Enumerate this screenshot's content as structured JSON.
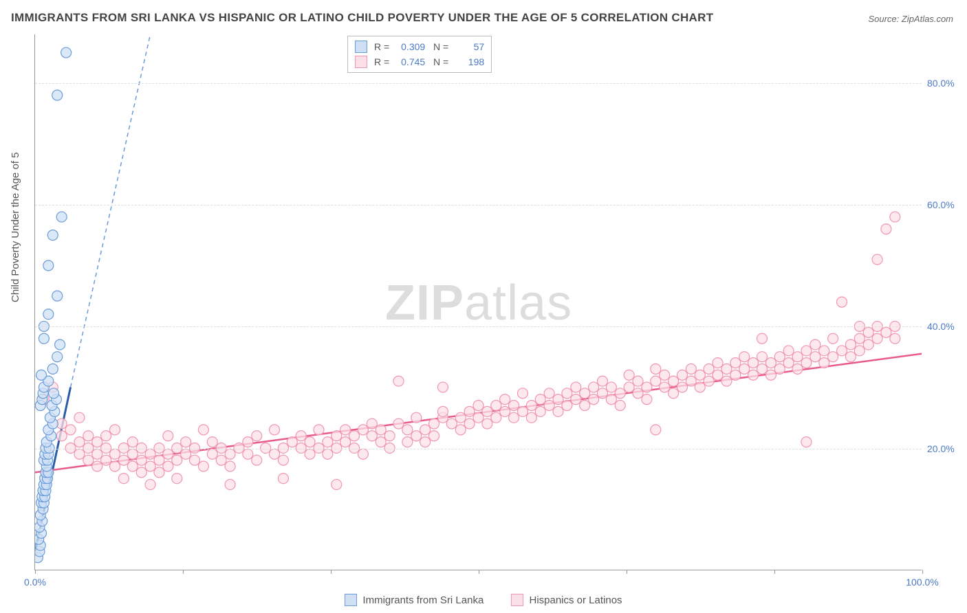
{
  "title": "IMMIGRANTS FROM SRI LANKA VS HISPANIC OR LATINO CHILD POVERTY UNDER THE AGE OF 5 CORRELATION CHART",
  "source": "Source: ZipAtlas.com",
  "ylabel": "Child Poverty Under the Age of 5",
  "watermark_a": "ZIP",
  "watermark_b": "atlas",
  "chart": {
    "type": "scatter",
    "xlim": [
      0,
      100
    ],
    "ylim": [
      0,
      88
    ],
    "yticks": [
      20,
      40,
      60,
      80
    ],
    "ytick_labels": [
      "20.0%",
      "40.0%",
      "60.0%",
      "80.0%"
    ],
    "xticks": [
      0,
      16.67,
      33.33,
      50,
      66.67,
      83.33,
      100
    ],
    "xtick_labels_shown": {
      "0": "0.0%",
      "100": "100.0%"
    },
    "background_color": "#ffffff",
    "grid_color": "#dddddd",
    "marker_radius": 7.5,
    "marker_stroke_width": 1.2,
    "series": {
      "blue": {
        "label": "Immigrants from Sri Lanka",
        "fill": "#cfe0f5",
        "stroke": "#6a9bd8",
        "R": "0.309",
        "N": "57",
        "trend": {
          "x1": 0,
          "y1": 3,
          "x2": 4,
          "y2": 30,
          "dash_x2": 13,
          "dash_y2": 88,
          "solid_color": "#2a5ca8",
          "dash_color": "#6a9bd8"
        },
        "points": [
          [
            0.3,
            2
          ],
          [
            0.5,
            3
          ],
          [
            0.6,
            4
          ],
          [
            0.4,
            5
          ],
          [
            0.7,
            6
          ],
          [
            0.5,
            7
          ],
          [
            0.8,
            8
          ],
          [
            0.6,
            9
          ],
          [
            0.9,
            10
          ],
          [
            0.7,
            11
          ],
          [
            1.0,
            11
          ],
          [
            0.8,
            12
          ],
          [
            1.1,
            12
          ],
          [
            0.9,
            13
          ],
          [
            1.2,
            13
          ],
          [
            1.0,
            14
          ],
          [
            1.3,
            14
          ],
          [
            1.1,
            15
          ],
          [
            1.4,
            15
          ],
          [
            1.2,
            16
          ],
          [
            1.5,
            16
          ],
          [
            1.3,
            17
          ],
          [
            1.0,
            18
          ],
          [
            1.4,
            18
          ],
          [
            1.1,
            19
          ],
          [
            1.5,
            19
          ],
          [
            1.2,
            20
          ],
          [
            1.6,
            20
          ],
          [
            1.3,
            21
          ],
          [
            1.8,
            22
          ],
          [
            1.5,
            23
          ],
          [
            2.0,
            24
          ],
          [
            1.7,
            25
          ],
          [
            2.2,
            26
          ],
          [
            1.9,
            27
          ],
          [
            2.4,
            28
          ],
          [
            2.1,
            29
          ],
          [
            0.6,
            27
          ],
          [
            0.8,
            28
          ],
          [
            0.9,
            29
          ],
          [
            1.0,
            30
          ],
          [
            1.5,
            31
          ],
          [
            0.7,
            32
          ],
          [
            2.0,
            33
          ],
          [
            2.5,
            35
          ],
          [
            2.8,
            37
          ],
          [
            1.0,
            38
          ],
          [
            1.0,
            40
          ],
          [
            1.5,
            42
          ],
          [
            2.5,
            45
          ],
          [
            1.5,
            50
          ],
          [
            2.0,
            55
          ],
          [
            3.0,
            58
          ],
          [
            2.5,
            78
          ],
          [
            3.5,
            85
          ]
        ]
      },
      "pink": {
        "label": "Hispanics or Latinos",
        "fill": "#fbe0e7",
        "stroke": "#f095b0",
        "R": "0.745",
        "N": "198",
        "trend": {
          "x1": 0,
          "y1": 16,
          "x2": 100,
          "y2": 35.5,
          "color": "#e85a8a",
          "width": 2.5
        },
        "points": [
          [
            1,
            28
          ],
          [
            2,
            30
          ],
          [
            3,
            24
          ],
          [
            3,
            22
          ],
          [
            4,
            20
          ],
          [
            4,
            23
          ],
          [
            5,
            19
          ],
          [
            5,
            21
          ],
          [
            5,
            25
          ],
          [
            6,
            18
          ],
          [
            6,
            20
          ],
          [
            6,
            22
          ],
          [
            7,
            17
          ],
          [
            7,
            19
          ],
          [
            7,
            21
          ],
          [
            8,
            18
          ],
          [
            8,
            20
          ],
          [
            8,
            22
          ],
          [
            9,
            17
          ],
          [
            9,
            19
          ],
          [
            9,
            23
          ],
          [
            10,
            18
          ],
          [
            10,
            20
          ],
          [
            10,
            15
          ],
          [
            11,
            17
          ],
          [
            11,
            19
          ],
          [
            11,
            21
          ],
          [
            12,
            16
          ],
          [
            12,
            18
          ],
          [
            12,
            20
          ],
          [
            13,
            17
          ],
          [
            13,
            19
          ],
          [
            13,
            14
          ],
          [
            14,
            18
          ],
          [
            14,
            20
          ],
          [
            14,
            16
          ],
          [
            15,
            17
          ],
          [
            15,
            19
          ],
          [
            15,
            22
          ],
          [
            16,
            18
          ],
          [
            16,
            20
          ],
          [
            16,
            15
          ],
          [
            17,
            19
          ],
          [
            17,
            21
          ],
          [
            18,
            18
          ],
          [
            18,
            20
          ],
          [
            19,
            17
          ],
          [
            19,
            23
          ],
          [
            20,
            19
          ],
          [
            20,
            21
          ],
          [
            21,
            18
          ],
          [
            21,
            20
          ],
          [
            22,
            19
          ],
          [
            22,
            17
          ],
          [
            22,
            14
          ],
          [
            23,
            20
          ],
          [
            24,
            19
          ],
          [
            24,
            21
          ],
          [
            25,
            18
          ],
          [
            25,
            22
          ],
          [
            26,
            20
          ],
          [
            27,
            19
          ],
          [
            27,
            23
          ],
          [
            28,
            20
          ],
          [
            28,
            18
          ],
          [
            28,
            15
          ],
          [
            29,
            21
          ],
          [
            30,
            20
          ],
          [
            30,
            22
          ],
          [
            31,
            19
          ],
          [
            31,
            21
          ],
          [
            32,
            20
          ],
          [
            32,
            23
          ],
          [
            33,
            21
          ],
          [
            33,
            19
          ],
          [
            34,
            22
          ],
          [
            34,
            20
          ],
          [
            34,
            14
          ],
          [
            35,
            21
          ],
          [
            35,
            23
          ],
          [
            36,
            22
          ],
          [
            36,
            20
          ],
          [
            37,
            23
          ],
          [
            37,
            19
          ],
          [
            38,
            22
          ],
          [
            38,
            24
          ],
          [
            39,
            21
          ],
          [
            39,
            23
          ],
          [
            40,
            22
          ],
          [
            40,
            20
          ],
          [
            41,
            24
          ],
          [
            41,
            31
          ],
          [
            42,
            23
          ],
          [
            42,
            21
          ],
          [
            43,
            22
          ],
          [
            43,
            25
          ],
          [
            44,
            23
          ],
          [
            44,
            21
          ],
          [
            45,
            24
          ],
          [
            45,
            22
          ],
          [
            46,
            25
          ],
          [
            46,
            26
          ],
          [
            46,
            30
          ],
          [
            47,
            24
          ],
          [
            48,
            25
          ],
          [
            48,
            23
          ],
          [
            49,
            26
          ],
          [
            49,
            24
          ],
          [
            50,
            25
          ],
          [
            50,
            27
          ],
          [
            51,
            26
          ],
          [
            51,
            24
          ],
          [
            52,
            27
          ],
          [
            52,
            25
          ],
          [
            53,
            26
          ],
          [
            53,
            28
          ],
          [
            54,
            27
          ],
          [
            54,
            25
          ],
          [
            55,
            26
          ],
          [
            55,
            29
          ],
          [
            56,
            27
          ],
          [
            56,
            25
          ],
          [
            57,
            28
          ],
          [
            57,
            26
          ],
          [
            58,
            27
          ],
          [
            58,
            29
          ],
          [
            59,
            28
          ],
          [
            59,
            26
          ],
          [
            60,
            29
          ],
          [
            60,
            27
          ],
          [
            61,
            28
          ],
          [
            61,
            30
          ],
          [
            62,
            29
          ],
          [
            62,
            27
          ],
          [
            63,
            28
          ],
          [
            63,
            30
          ],
          [
            64,
            29
          ],
          [
            64,
            31
          ],
          [
            65,
            28
          ],
          [
            65,
            30
          ],
          [
            66,
            29
          ],
          [
            66,
            27
          ],
          [
            67,
            30
          ],
          [
            67,
            32
          ],
          [
            68,
            29
          ],
          [
            68,
            31
          ],
          [
            69,
            30
          ],
          [
            69,
            28
          ],
          [
            70,
            31
          ],
          [
            70,
            33
          ],
          [
            70,
            23
          ],
          [
            71,
            30
          ],
          [
            71,
            32
          ],
          [
            72,
            31
          ],
          [
            72,
            29
          ],
          [
            73,
            32
          ],
          [
            73,
            30
          ],
          [
            74,
            31
          ],
          [
            74,
            33
          ],
          [
            75,
            32
          ],
          [
            75,
            30
          ],
          [
            76,
            31
          ],
          [
            76,
            33
          ],
          [
            77,
            32
          ],
          [
            77,
            34
          ],
          [
            78,
            31
          ],
          [
            78,
            33
          ],
          [
            79,
            32
          ],
          [
            79,
            34
          ],
          [
            80,
            33
          ],
          [
            80,
            35
          ],
          [
            81,
            32
          ],
          [
            81,
            34
          ],
          [
            82,
            33
          ],
          [
            82,
            35
          ],
          [
            82,
            38
          ],
          [
            83,
            34
          ],
          [
            83,
            32
          ],
          [
            84,
            35
          ],
          [
            84,
            33
          ],
          [
            85,
            34
          ],
          [
            85,
            36
          ],
          [
            86,
            35
          ],
          [
            86,
            33
          ],
          [
            87,
            34
          ],
          [
            87,
            36
          ],
          [
            87,
            21
          ],
          [
            88,
            35
          ],
          [
            88,
            37
          ],
          [
            89,
            34
          ],
          [
            89,
            36
          ],
          [
            90,
            35
          ],
          [
            90,
            38
          ],
          [
            91,
            36
          ],
          [
            91,
            44
          ],
          [
            92,
            37
          ],
          [
            92,
            35
          ],
          [
            93,
            38
          ],
          [
            93,
            36
          ],
          [
            93,
            40
          ],
          [
            94,
            37
          ],
          [
            94,
            39
          ],
          [
            95,
            38
          ],
          [
            95,
            40
          ],
          [
            95,
            51
          ],
          [
            96,
            39
          ],
          [
            96,
            56
          ],
          [
            97,
            40
          ],
          [
            97,
            38
          ],
          [
            97,
            58
          ]
        ]
      }
    }
  }
}
